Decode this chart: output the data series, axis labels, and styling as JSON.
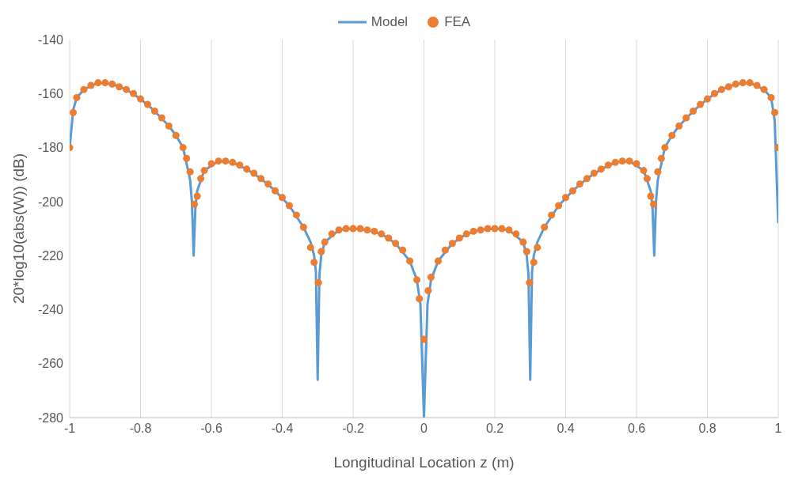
{
  "chart_data": {
    "type": "line",
    "xlabel": "Longitudinal Location z (m)",
    "ylabel": "20*log10(abs(W)) (dB)",
    "xlim": [
      -1,
      1
    ],
    "xticks": [
      -1,
      -0.8,
      -0.6,
      -0.4,
      -0.2,
      0,
      0.2,
      0.4,
      0.6,
      0.8,
      1
    ],
    "ylim": [
      -280,
      -140
    ],
    "yticks": [
      -280,
      -260,
      -240,
      -220,
      -200,
      -180,
      -160,
      -140
    ],
    "grid": "x",
    "legend": "top",
    "series": [
      {
        "name": "Model",
        "color": "#5b9bd5",
        "marker": "none",
        "line_style": "solid",
        "x": [
          -1,
          -0.99,
          -0.98,
          -0.96,
          -0.92,
          -0.88,
          -0.84,
          -0.8,
          -0.76,
          -0.72,
          -0.7,
          -0.68,
          -0.66,
          -0.655,
          -0.65,
          -0.645,
          -0.64,
          -0.62,
          -0.58,
          -0.54,
          -0.5,
          -0.46,
          -0.42,
          -0.38,
          -0.34,
          -0.32,
          -0.31,
          -0.305,
          -0.3,
          -0.295,
          -0.29,
          -0.28,
          -0.24,
          -0.2,
          -0.16,
          -0.12,
          -0.08,
          -0.04,
          -0.02,
          -0.01,
          0,
          0.01,
          0.02,
          0.04,
          0.08,
          0.12,
          0.16,
          0.2,
          0.24,
          0.28,
          0.29,
          0.295,
          0.3,
          0.305,
          0.31,
          0.32,
          0.34,
          0.38,
          0.42,
          0.46,
          0.5,
          0.54,
          0.58,
          0.62,
          0.64,
          0.645,
          0.65,
          0.655,
          0.66,
          0.68,
          0.7,
          0.72,
          0.76,
          0.8,
          0.84,
          0.88,
          0.92,
          0.96,
          0.98,
          0.99,
          1
        ],
        "values": [
          -180,
          -166,
          -161.5,
          -158.5,
          -156,
          -156.5,
          -158.5,
          -162,
          -166.5,
          -172,
          -175.5,
          -180,
          -192,
          -200,
          -220,
          -202,
          -196,
          -188.5,
          -185,
          -185.5,
          -188,
          -191.5,
          -196,
          -201.5,
          -209.5,
          -215,
          -220,
          -226,
          -266,
          -227,
          -220,
          -215,
          -210.5,
          -210,
          -210.5,
          -212,
          -215.5,
          -222,
          -229,
          -238,
          -280,
          -238,
          -229,
          -222,
          -215.5,
          -212,
          -210.5,
          -210,
          -210.5,
          -215,
          -220,
          -227,
          -266,
          -226,
          -220,
          -215,
          -209.5,
          -201.5,
          -196,
          -191.5,
          -188,
          -185.5,
          -185,
          -188.5,
          -196,
          -202,
          -220,
          -200,
          -192,
          -180,
          -175.5,
          -172,
          -166.5,
          -162,
          -158.5,
          -156.5,
          -156,
          -158.5,
          -161.5,
          -170,
          -208
        ]
      },
      {
        "name": "FEA",
        "type": "scatter",
        "color": "#ed7d31",
        "marker": "circle",
        "x": [
          -1,
          -0.99,
          -0.98,
          -0.96,
          -0.94,
          -0.92,
          -0.9,
          -0.88,
          -0.86,
          -0.84,
          -0.82,
          -0.8,
          -0.78,
          -0.76,
          -0.74,
          -0.72,
          -0.7,
          -0.68,
          -0.67,
          -0.66,
          -0.648,
          -0.64,
          -0.63,
          -0.62,
          -0.6,
          -0.58,
          -0.56,
          -0.54,
          -0.52,
          -0.5,
          -0.48,
          -0.46,
          -0.44,
          -0.42,
          -0.4,
          -0.38,
          -0.36,
          -0.34,
          -0.32,
          -0.31,
          -0.298,
          -0.29,
          -0.28,
          -0.26,
          -0.24,
          -0.22,
          -0.2,
          -0.18,
          -0.16,
          -0.14,
          -0.12,
          -0.1,
          -0.08,
          -0.06,
          -0.04,
          -0.02,
          -0.013,
          0,
          0.012,
          0.02,
          0.04,
          0.06,
          0.08,
          0.1,
          0.12,
          0.14,
          0.16,
          0.18,
          0.2,
          0.22,
          0.24,
          0.26,
          0.28,
          0.29,
          0.298,
          0.31,
          0.32,
          0.34,
          0.36,
          0.38,
          0.4,
          0.42,
          0.44,
          0.46,
          0.48,
          0.5,
          0.52,
          0.54,
          0.56,
          0.58,
          0.6,
          0.62,
          0.63,
          0.64,
          0.648,
          0.66,
          0.67,
          0.68,
          0.7,
          0.72,
          0.74,
          0.76,
          0.78,
          0.8,
          0.82,
          0.84,
          0.86,
          0.88,
          0.9,
          0.92,
          0.94,
          0.96,
          0.98,
          0.99,
          1
        ],
        "values": [
          -180,
          -167,
          -161.5,
          -158.5,
          -157,
          -156,
          -156,
          -156.5,
          -157.5,
          -158.5,
          -160,
          -162,
          -164,
          -166.5,
          -169,
          -172,
          -175.5,
          -180,
          -184,
          -189,
          -201,
          -198,
          -191.5,
          -188.5,
          -186,
          -185,
          -185,
          -185.5,
          -186.5,
          -188,
          -189.5,
          -191.5,
          -193.5,
          -196,
          -198.5,
          -201.5,
          -205,
          -209.5,
          -217,
          -222.5,
          -230,
          -218.5,
          -215,
          -212,
          -210.5,
          -210,
          -210,
          -210,
          -210.5,
          -211,
          -212,
          -213.5,
          -215.5,
          -218,
          -222,
          -229,
          -236,
          -251,
          -233,
          -228,
          -222,
          -218,
          -215.5,
          -213.5,
          -212,
          -211,
          -210.5,
          -210,
          -210,
          -210,
          -210.5,
          -212,
          -215,
          -218.5,
          -230,
          -222.5,
          -217,
          -209.5,
          -205,
          -201.5,
          -198.5,
          -196,
          -193.5,
          -191.5,
          -189.5,
          -188,
          -186.5,
          -185.5,
          -185,
          -185,
          -186,
          -188.5,
          -191.5,
          -198,
          -201,
          -189,
          -184,
          -180,
          -175.5,
          -172,
          -169,
          -166.5,
          -164,
          -162,
          -160,
          -158.5,
          -157.5,
          -156.5,
          -156,
          -156,
          -157,
          -158.5,
          -161.5,
          -167,
          -180
        ]
      }
    ]
  }
}
